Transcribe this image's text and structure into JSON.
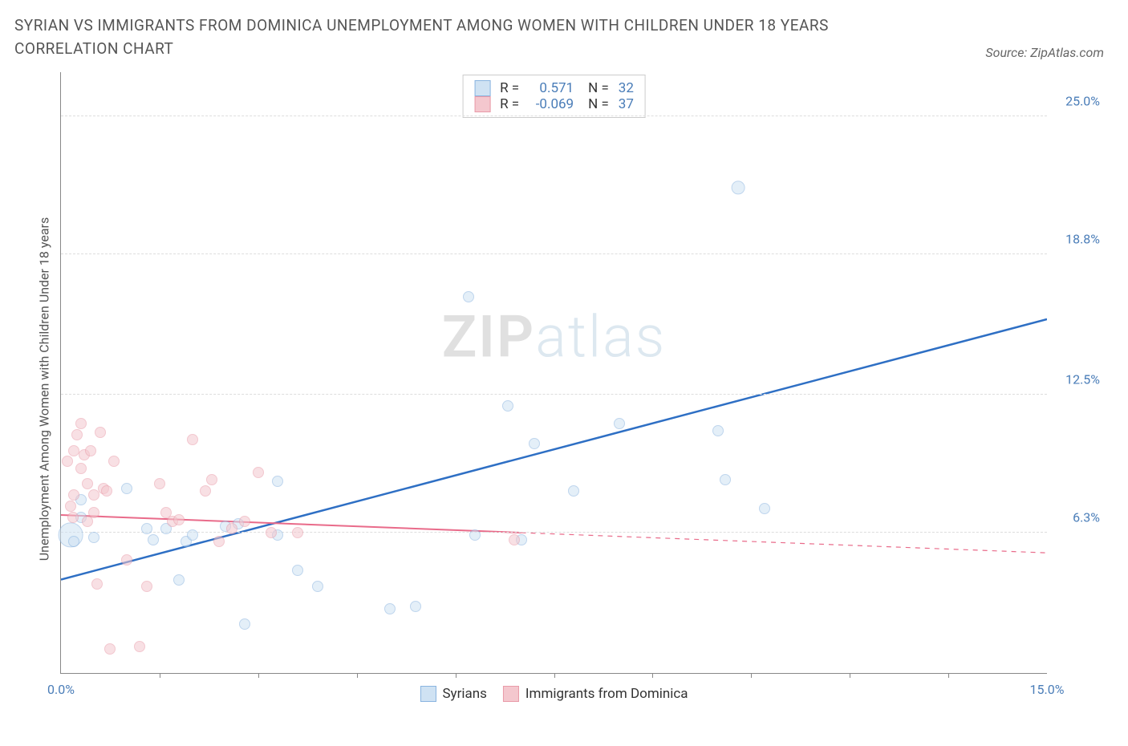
{
  "title": "SYRIAN VS IMMIGRANTS FROM DOMINICA UNEMPLOYMENT AMONG WOMEN WITH CHILDREN UNDER 18 YEARS CORRELATION CHART",
  "source": "Source: ZipAtlas.com",
  "chart": {
    "type": "scatter",
    "ylabel": "Unemployment Among Women with Children Under 18 years",
    "xlim": [
      0,
      15
    ],
    "ylim": [
      0,
      27
    ],
    "xticks": [
      0,
      15
    ],
    "xtick_labels": [
      "0.0%",
      "15.0%"
    ],
    "xtick_minor": [
      1.5,
      3,
      4.5,
      6,
      7.5,
      9,
      10.5,
      12,
      13.5
    ],
    "yticks": [
      6.3,
      12.5,
      18.8,
      25.0
    ],
    "ytick_labels": [
      "6.3%",
      "12.5%",
      "18.8%",
      "25.0%"
    ],
    "background_color": "#ffffff",
    "grid_color": "#dddddd",
    "watermark": {
      "zip": "ZIP",
      "atlas": "atlas"
    },
    "series": [
      {
        "name": "Syrians",
        "fill": "#cfe2f3",
        "stroke": "#8ab4e0",
        "fill_opacity": 0.55,
        "r_value": "0.571",
        "n_value": "32",
        "trend": {
          "x1": 0,
          "y1": 4.2,
          "x2": 15,
          "y2": 15.9,
          "color": "#2e6fc4",
          "width": 2.5,
          "solid_until": 15
        },
        "points": [
          [
            0.15,
            6.2,
            22
          ],
          [
            0.2,
            5.9,
            10
          ],
          [
            0.3,
            7.8,
            10
          ],
          [
            0.3,
            7.0,
            10
          ],
          [
            0.5,
            6.1,
            10
          ],
          [
            1.0,
            8.3,
            10
          ],
          [
            1.3,
            6.5,
            10
          ],
          [
            1.4,
            6.0,
            10
          ],
          [
            1.6,
            6.5,
            10
          ],
          [
            1.9,
            5.9,
            10
          ],
          [
            2.0,
            6.2,
            10
          ],
          [
            1.8,
            4.2,
            10
          ],
          [
            2.5,
            6.6,
            10
          ],
          [
            2.8,
            2.2,
            10
          ],
          [
            2.7,
            6.7,
            10
          ],
          [
            3.3,
            6.2,
            10
          ],
          [
            3.3,
            8.6,
            10
          ],
          [
            3.6,
            4.6,
            10
          ],
          [
            3.9,
            3.9,
            10
          ],
          [
            5.0,
            2.9,
            10
          ],
          [
            5.4,
            3.0,
            10
          ],
          [
            6.2,
            16.9,
            10
          ],
          [
            6.8,
            12.0,
            10
          ],
          [
            7.2,
            10.3,
            10
          ],
          [
            7.8,
            8.2,
            10
          ],
          [
            8.5,
            11.2,
            10
          ],
          [
            10.0,
            10.9,
            10
          ],
          [
            10.1,
            8.7,
            10
          ],
          [
            10.3,
            21.8,
            12
          ],
          [
            10.7,
            7.4,
            10
          ],
          [
            7.0,
            6.0,
            10
          ],
          [
            6.3,
            6.2,
            10
          ]
        ]
      },
      {
        "name": "Immigrants from Dominica",
        "fill": "#f4c7ce",
        "stroke": "#e99aa8",
        "fill_opacity": 0.55,
        "r_value": "-0.069",
        "n_value": "37",
        "trend": {
          "x1": 0,
          "y1": 7.1,
          "x2": 15,
          "y2": 5.4,
          "color": "#e96b8a",
          "width": 2,
          "solid_until": 7.0
        },
        "points": [
          [
            0.1,
            9.5,
            10
          ],
          [
            0.15,
            7.5,
            10
          ],
          [
            0.18,
            7.0,
            10
          ],
          [
            0.2,
            10.0,
            10
          ],
          [
            0.2,
            8.0,
            10
          ],
          [
            0.25,
            10.7,
            10
          ],
          [
            0.3,
            11.2,
            10
          ],
          [
            0.3,
            9.2,
            10
          ],
          [
            0.35,
            9.8,
            10
          ],
          [
            0.4,
            8.5,
            10
          ],
          [
            0.4,
            6.8,
            10
          ],
          [
            0.45,
            10.0,
            10
          ],
          [
            0.5,
            8.0,
            10
          ],
          [
            0.5,
            7.2,
            10
          ],
          [
            0.55,
            4.0,
            10
          ],
          [
            0.6,
            10.8,
            10
          ],
          [
            0.65,
            8.3,
            10
          ],
          [
            0.7,
            8.2,
            10
          ],
          [
            0.75,
            1.1,
            10
          ],
          [
            0.8,
            9.5,
            10
          ],
          [
            1.0,
            5.1,
            10
          ],
          [
            1.2,
            1.2,
            10
          ],
          [
            1.3,
            3.9,
            10
          ],
          [
            1.6,
            7.2,
            10
          ],
          [
            1.7,
            6.8,
            10
          ],
          [
            1.8,
            6.9,
            10
          ],
          [
            2.0,
            10.5,
            10
          ],
          [
            2.2,
            8.2,
            10
          ],
          [
            2.3,
            8.7,
            10
          ],
          [
            2.4,
            5.9,
            10
          ],
          [
            2.6,
            6.5,
            10
          ],
          [
            2.8,
            6.8,
            10
          ],
          [
            3.0,
            9.0,
            10
          ],
          [
            3.2,
            6.3,
            10
          ],
          [
            3.6,
            6.3,
            10
          ],
          [
            6.9,
            6.0,
            10
          ],
          [
            1.5,
            8.5,
            10
          ]
        ]
      }
    ]
  },
  "legend_bottom": [
    {
      "label": "Syrians",
      "fill": "#cfe2f3",
      "stroke": "#8ab4e0"
    },
    {
      "label": "Immigrants from Dominica",
      "fill": "#f4c7ce",
      "stroke": "#e99aa8"
    }
  ]
}
